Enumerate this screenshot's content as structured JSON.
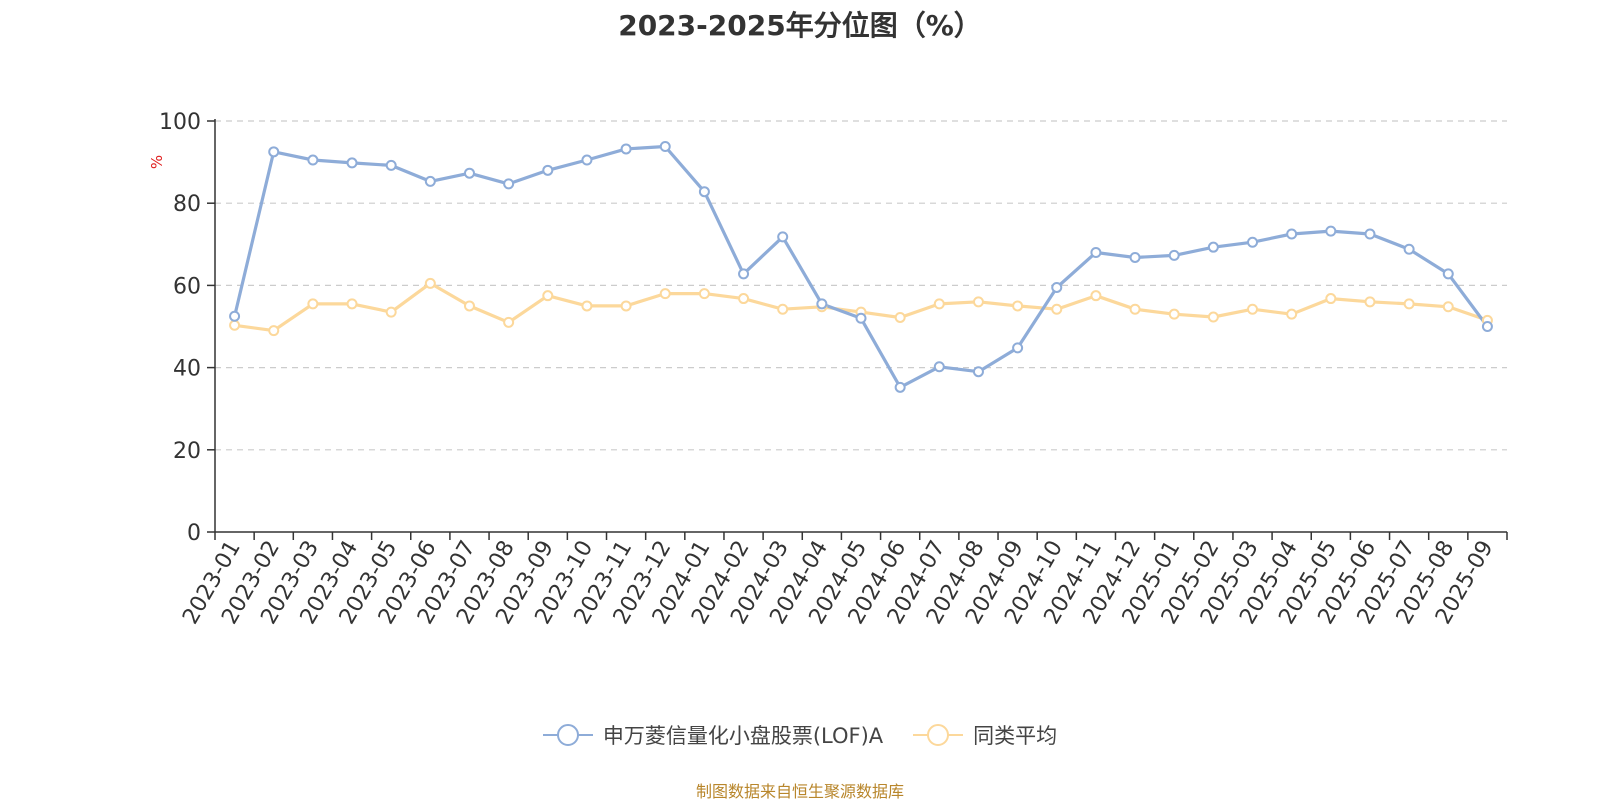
{
  "chart_data": {
    "type": "line",
    "title": "2023-2025年分位图（%）",
    "ylabel": "%",
    "xlabel": "",
    "ylim": [
      0,
      100
    ],
    "yticks": [
      0,
      20,
      40,
      60,
      80,
      100
    ],
    "grid": true,
    "legend_position": "bottom",
    "x": [
      "2023-01",
      "2023-02",
      "2023-03",
      "2023-04",
      "2023-05",
      "2023-06",
      "2023-07",
      "2023-08",
      "2023-09",
      "2023-10",
      "2023-11",
      "2023-12",
      "2024-01",
      "2024-02",
      "2024-03",
      "2024-04",
      "2024-05",
      "2024-06",
      "2024-07",
      "2024-08",
      "2024-09",
      "2024-10",
      "2024-11",
      "2024-12",
      "2025-01",
      "2025-02",
      "2025-03",
      "2025-04",
      "2025-05",
      "2025-06",
      "2025-07",
      "2025-08",
      "2025-09"
    ],
    "series": [
      {
        "name": "申万菱信量化小盘股票(LOF)A",
        "color": "#8eacd8",
        "values": [
          52.5,
          92.5,
          90.5,
          89.8,
          89.2,
          85.3,
          87.3,
          84.7,
          88.0,
          90.5,
          93.2,
          93.8,
          82.8,
          62.8,
          71.8,
          55.5,
          52.0,
          35.2,
          40.2,
          39.0,
          44.8,
          59.5,
          68.0,
          66.8,
          67.3,
          69.3,
          70.5,
          72.5,
          73.2,
          72.5,
          68.8,
          62.8,
          50.0
        ]
      },
      {
        "name": "同类平均",
        "color": "#fcd89b",
        "values": [
          50.3,
          49.0,
          55.5,
          55.5,
          53.5,
          60.5,
          55.0,
          51.0,
          57.5,
          55.0,
          55.0,
          58.0,
          58.0,
          56.8,
          54.2,
          54.8,
          53.5,
          52.2,
          55.5,
          56.0,
          55.0,
          54.2,
          57.5,
          54.2,
          53.0,
          52.3,
          54.2,
          53.0,
          56.8,
          56.0,
          55.5,
          54.8,
          51.5
        ]
      }
    ]
  },
  "footer": "制图数据来自恒生聚源数据库"
}
